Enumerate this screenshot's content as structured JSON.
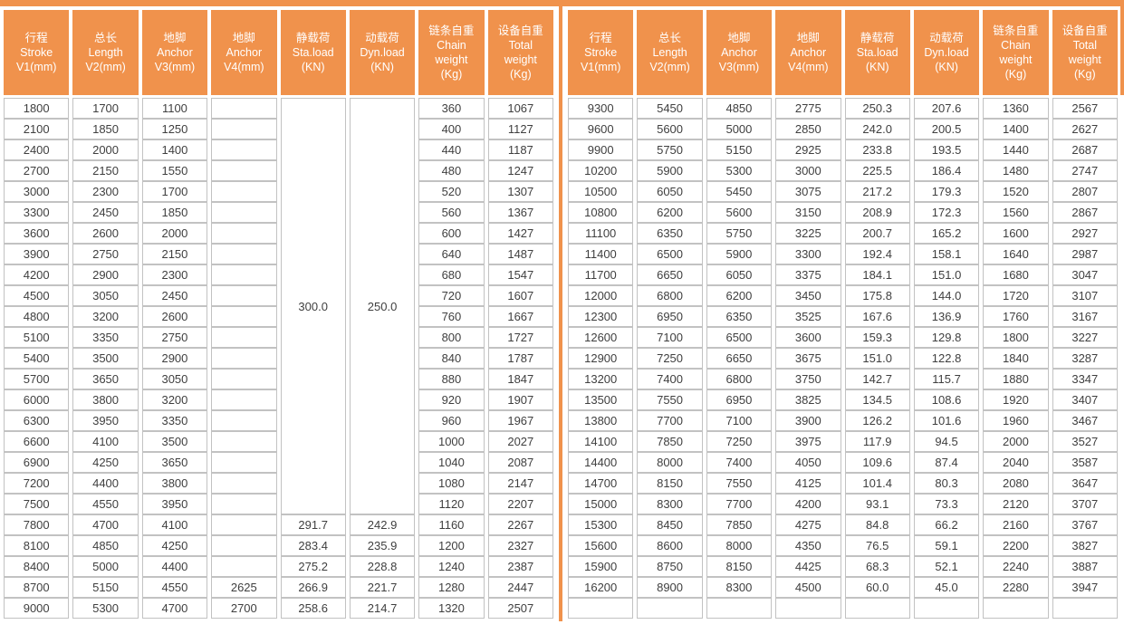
{
  "colors": {
    "accent_orange": "#F0924C",
    "grid_line": "#C2C2C2",
    "cell_text": "#3F3F3F",
    "header_text": "#FFFFFF",
    "background": "#FFFFFF"
  },
  "table": {
    "header_columns": [
      {
        "name": "stroke",
        "lines": [
          "行程",
          "Stroke",
          "V1(mm)"
        ]
      },
      {
        "name": "length",
        "lines": [
          "总长",
          "Length",
          "V2(mm)"
        ]
      },
      {
        "name": "anchor-v3",
        "lines": [
          "地脚",
          "Anchor",
          "V3(mm)"
        ]
      },
      {
        "name": "anchor-v4",
        "lines": [
          "地脚",
          "Anchor",
          "V4(mm)"
        ]
      },
      {
        "name": "static-load",
        "lines": [
          "静载荷",
          "Sta.load",
          "(KN)"
        ]
      },
      {
        "name": "dynamic-load",
        "lines": [
          "动载荷",
          "Dyn.load",
          "(KN)"
        ]
      },
      {
        "name": "chain-weight",
        "lines": [
          "链条自重",
          "Chain",
          "weight",
          "(Kg)"
        ]
      },
      {
        "name": "total-weight",
        "lines": [
          "设备自重",
          "Total",
          "weight",
          "(Kg)"
        ]
      }
    ],
    "left": {
      "merged_cells": [
        {
          "row": 0,
          "col": 4,
          "rowspan": 20,
          "value": "300.0"
        },
        {
          "row": 0,
          "col": 5,
          "rowspan": 20,
          "value": "250.0"
        }
      ],
      "rows": [
        [
          "1800",
          "1700",
          "1100",
          "",
          "",
          "",
          "360",
          "1067"
        ],
        [
          "2100",
          "1850",
          "1250",
          "",
          "",
          "",
          "400",
          "1127"
        ],
        [
          "2400",
          "2000",
          "1400",
          "",
          "",
          "",
          "440",
          "1187"
        ],
        [
          "2700",
          "2150",
          "1550",
          "",
          "",
          "",
          "480",
          "1247"
        ],
        [
          "3000",
          "2300",
          "1700",
          "",
          "",
          "",
          "520",
          "1307"
        ],
        [
          "3300",
          "2450",
          "1850",
          "",
          "",
          "",
          "560",
          "1367"
        ],
        [
          "3600",
          "2600",
          "2000",
          "",
          "",
          "",
          "600",
          "1427"
        ],
        [
          "3900",
          "2750",
          "2150",
          "",
          "",
          "",
          "640",
          "1487"
        ],
        [
          "4200",
          "2900",
          "2300",
          "",
          "",
          "",
          "680",
          "1547"
        ],
        [
          "4500",
          "3050",
          "2450",
          "",
          "",
          "",
          "720",
          "1607"
        ],
        [
          "4800",
          "3200",
          "2600",
          "",
          "",
          "",
          "760",
          "1667"
        ],
        [
          "5100",
          "3350",
          "2750",
          "",
          "",
          "",
          "800",
          "1727"
        ],
        [
          "5400",
          "3500",
          "2900",
          "",
          "",
          "",
          "840",
          "1787"
        ],
        [
          "5700",
          "3650",
          "3050",
          "",
          "",
          "",
          "880",
          "1847"
        ],
        [
          "6000",
          "3800",
          "3200",
          "",
          "",
          "",
          "920",
          "1907"
        ],
        [
          "6300",
          "3950",
          "3350",
          "",
          "",
          "",
          "960",
          "1967"
        ],
        [
          "6600",
          "4100",
          "3500",
          "",
          "",
          "",
          "1000",
          "2027"
        ],
        [
          "6900",
          "4250",
          "3650",
          "",
          "",
          "",
          "1040",
          "2087"
        ],
        [
          "7200",
          "4400",
          "3800",
          "",
          "",
          "",
          "1080",
          "2147"
        ],
        [
          "7500",
          "4550",
          "3950",
          "",
          "",
          "",
          "1120",
          "2207"
        ],
        [
          "7800",
          "4700",
          "4100",
          "",
          "291.7",
          "242.9",
          "1160",
          "2267"
        ],
        [
          "8100",
          "4850",
          "4250",
          "",
          "283.4",
          "235.9",
          "1200",
          "2327"
        ],
        [
          "8400",
          "5000",
          "4400",
          "",
          "275.2",
          "228.8",
          "1240",
          "2387"
        ],
        [
          "8700",
          "5150",
          "4550",
          "2625",
          "266.9",
          "221.7",
          "1280",
          "2447"
        ],
        [
          "9000",
          "5300",
          "4700",
          "2700",
          "258.6",
          "214.7",
          "1320",
          "2507"
        ]
      ]
    },
    "right": {
      "merged_cells": [],
      "rows": [
        [
          "9300",
          "5450",
          "4850",
          "2775",
          "250.3",
          "207.6",
          "1360",
          "2567"
        ],
        [
          "9600",
          "5600",
          "5000",
          "2850",
          "242.0",
          "200.5",
          "1400",
          "2627"
        ],
        [
          "9900",
          "5750",
          "5150",
          "2925",
          "233.8",
          "193.5",
          "1440",
          "2687"
        ],
        [
          "10200",
          "5900",
          "5300",
          "3000",
          "225.5",
          "186.4",
          "1480",
          "2747"
        ],
        [
          "10500",
          "6050",
          "5450",
          "3075",
          "217.2",
          "179.3",
          "1520",
          "2807"
        ],
        [
          "10800",
          "6200",
          "5600",
          "3150",
          "208.9",
          "172.3",
          "1560",
          "2867"
        ],
        [
          "11100",
          "6350",
          "5750",
          "3225",
          "200.7",
          "165.2",
          "1600",
          "2927"
        ],
        [
          "11400",
          "6500",
          "5900",
          "3300",
          "192.4",
          "158.1",
          "1640",
          "2987"
        ],
        [
          "11700",
          "6650",
          "6050",
          "3375",
          "184.1",
          "151.0",
          "1680",
          "3047"
        ],
        [
          "12000",
          "6800",
          "6200",
          "3450",
          "175.8",
          "144.0",
          "1720",
          "3107"
        ],
        [
          "12300",
          "6950",
          "6350",
          "3525",
          "167.6",
          "136.9",
          "1760",
          "3167"
        ],
        [
          "12600",
          "7100",
          "6500",
          "3600",
          "159.3",
          "129.8",
          "1800",
          "3227"
        ],
        [
          "12900",
          "7250",
          "6650",
          "3675",
          "151.0",
          "122.8",
          "1840",
          "3287"
        ],
        [
          "13200",
          "7400",
          "6800",
          "3750",
          "142.7",
          "115.7",
          "1880",
          "3347"
        ],
        [
          "13500",
          "7550",
          "6950",
          "3825",
          "134.5",
          "108.6",
          "1920",
          "3407"
        ],
        [
          "13800",
          "7700",
          "7100",
          "3900",
          "126.2",
          "101.6",
          "1960",
          "3467"
        ],
        [
          "14100",
          "7850",
          "7250",
          "3975",
          "117.9",
          "94.5",
          "2000",
          "3527"
        ],
        [
          "14400",
          "8000",
          "7400",
          "4050",
          "109.6",
          "87.4",
          "2040",
          "3587"
        ],
        [
          "14700",
          "8150",
          "7550",
          "4125",
          "101.4",
          "80.3",
          "2080",
          "3647"
        ],
        [
          "15000",
          "8300",
          "7700",
          "4200",
          "93.1",
          "73.3",
          "2120",
          "3707"
        ],
        [
          "15300",
          "8450",
          "7850",
          "4275",
          "84.8",
          "66.2",
          "2160",
          "3767"
        ],
        [
          "15600",
          "8600",
          "8000",
          "4350",
          "76.5",
          "59.1",
          "2200",
          "3827"
        ],
        [
          "15900",
          "8750",
          "8150",
          "4425",
          "68.3",
          "52.1",
          "2240",
          "3887"
        ],
        [
          "16200",
          "8900",
          "8300",
          "4500",
          "60.0",
          "45.0",
          "2280",
          "3947"
        ],
        [
          "",
          "",
          "",
          "",
          "",
          "",
          "",
          ""
        ]
      ]
    }
  }
}
